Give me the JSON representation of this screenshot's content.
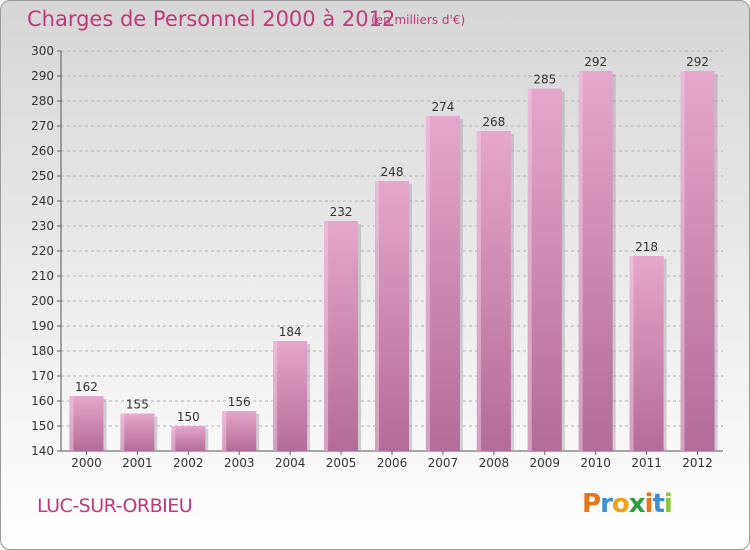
{
  "title": "Charges de Personnel 2000 à 2012",
  "subtitle": "(en milliers d'€)",
  "place": "LUC-SUR-ORBIEU",
  "logo": {
    "letters": [
      "P",
      "r",
      "o",
      "x",
      "i",
      "t",
      "i"
    ],
    "colors": [
      "#e8751a",
      "#3f8fd2",
      "#f2a21a",
      "#2e9e3e",
      "#e8751a",
      "#3f8fd2",
      "#8cc63f"
    ]
  },
  "colors": {
    "accent": "#c0397a",
    "bar_top": "#e5a7cb",
    "bar_bottom": "#b26c98",
    "grid": "#b4b4b4"
  },
  "chart_data": {
    "type": "bar",
    "categories": [
      "2000",
      "2001",
      "2002",
      "2003",
      "2004",
      "2005",
      "2006",
      "2007",
      "2008",
      "2009",
      "2010",
      "2011",
      "2012"
    ],
    "values": [
      162,
      155,
      150,
      156,
      184,
      232,
      248,
      274,
      268,
      285,
      292,
      218,
      292
    ],
    "ylim": [
      140,
      300
    ],
    "yticks": [
      140,
      150,
      160,
      170,
      180,
      190,
      200,
      210,
      220,
      230,
      240,
      250,
      260,
      270,
      280,
      290,
      300
    ],
    "grid": true,
    "data_labels": true
  }
}
